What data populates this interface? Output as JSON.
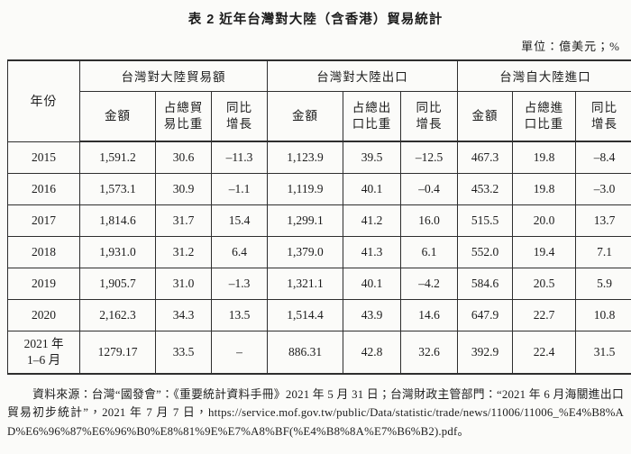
{
  "title": "表 2 近年台灣對大陸（含香港）貿易統計",
  "unit_note": "單位：億美元；%",
  "table": {
    "year_header": "年份",
    "groups": [
      {
        "label": "台灣對大陸貿易額",
        "sub": [
          "金額",
          "占總貿\n易比重",
          "同比\n增長"
        ]
      },
      {
        "label": "台灣對大陸出口",
        "sub": [
          "金額",
          "占總出\n口比重",
          "同比\n增長"
        ]
      },
      {
        "label": "台灣自大陸進口",
        "sub": [
          "金額",
          "占總進\n口比重",
          "同比\n增長"
        ]
      }
    ],
    "rows": [
      {
        "year": "2015",
        "values": [
          "1,591.2",
          "30.6",
          "–11.3",
          "1,123.9",
          "39.5",
          "–12.5",
          "467.3",
          "19.8",
          "–8.4"
        ]
      },
      {
        "year": "2016",
        "values": [
          "1,573.1",
          "30.9",
          "–1.1",
          "1,119.9",
          "40.1",
          "–0.4",
          "453.2",
          "19.8",
          "–3.0"
        ]
      },
      {
        "year": "2017",
        "values": [
          "1,814.6",
          "31.7",
          "15.4",
          "1,299.1",
          "41.2",
          "16.0",
          "515.5",
          "20.0",
          "13.7"
        ]
      },
      {
        "year": "2018",
        "values": [
          "1,931.0",
          "31.2",
          "6.4",
          "1,379.0",
          "41.3",
          "6.1",
          "552.0",
          "19.4",
          "7.1"
        ]
      },
      {
        "year": "2019",
        "values": [
          "1,905.7",
          "31.0",
          "–1.3",
          "1,321.1",
          "40.1",
          "–4.2",
          "584.6",
          "20.5",
          "5.9"
        ]
      },
      {
        "year": "2020",
        "values": [
          "2,162.3",
          "34.3",
          "13.5",
          "1,514.4",
          "43.9",
          "14.6",
          "647.9",
          "22.7",
          "10.8"
        ]
      },
      {
        "year": "2021 年\n1–6 月",
        "values": [
          "1279.17",
          "33.5",
          "–",
          "886.31",
          "42.8",
          "32.6",
          "392.9",
          "22.4",
          "31.5"
        ]
      }
    ]
  },
  "source_note": "資料來源：台灣“國發會”：《重要統計資料手冊》2021 年 5 月 31 日；台灣財政主管部門：“2021 年 6 月海關進出口貿易初步統計”，2021 年 7 月 7 日，https://service.mof.gov.tw/public/Data/statistic/trade/news/11006/11006_%E4%B8%AD%E6%96%87%E6%96%B0%E8%81%9E%E7%A8%BF(%E4%B8%8A%E7%B6%B2).pdf。",
  "colors": {
    "text": "#1c1c1c",
    "border": "#2e2e2e",
    "background": "#fbfbf9"
  }
}
